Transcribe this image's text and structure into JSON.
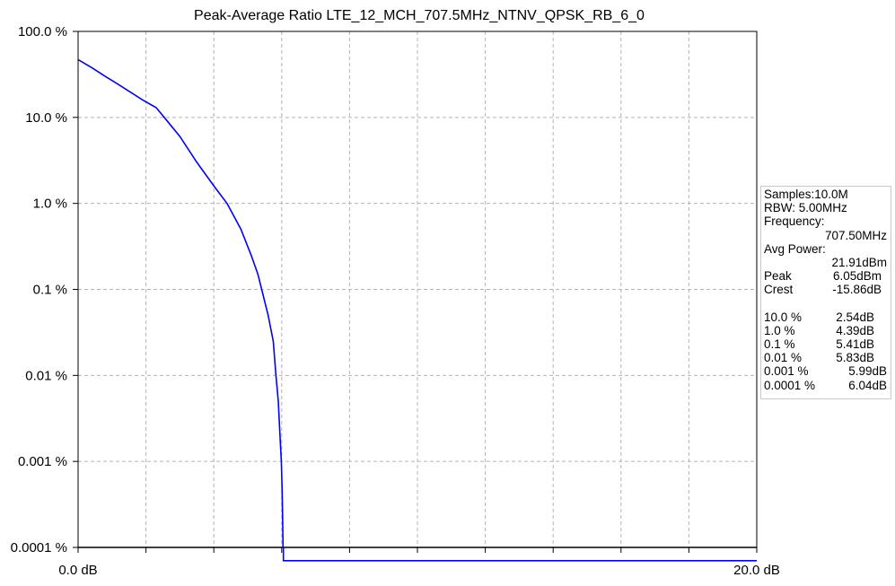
{
  "chart_data": {
    "type": "line",
    "title": "Peak-Average Ratio LTE_12_MCH_707.5MHz_NTNV_QPSK_RB_6_0",
    "xlabel": "",
    "ylabel": "",
    "xlim": [
      0,
      20
    ],
    "ylim_percent": [
      0.0001,
      100
    ],
    "y_scale": "log",
    "grid": true,
    "x_tick_labels": [
      "0.0 dB",
      "20.0 dB"
    ],
    "y_tick_labels": [
      "100.0 %",
      "10.0 %",
      "1.0 %",
      "0.1 %",
      "0.01 %",
      "0.001 %",
      "0.0001 %"
    ],
    "y_tick_values": [
      100,
      10,
      1,
      0.1,
      0.01,
      0.001,
      0.0001
    ],
    "series": [
      {
        "color": "#0000ff",
        "x": [
          0.0,
          0.4,
          0.8,
          1.2,
          1.6,
          1.9,
          2.3,
          2.54,
          3.0,
          3.5,
          4.0,
          4.39,
          4.8,
          5.1,
          5.3,
          5.41,
          5.6,
          5.75,
          5.83,
          5.9,
          5.95,
          5.99,
          6.01,
          6.03,
          6.04,
          6.05,
          6.05,
          20.0
        ],
        "y": [
          47,
          38,
          30,
          24,
          19,
          16,
          13,
          10,
          6,
          3,
          1.6,
          1.0,
          0.5,
          0.25,
          0.15,
          0.1,
          0.05,
          0.025,
          0.01,
          0.005,
          0.002,
          0.001,
          0.0005,
          0.0002,
          0.0001,
          0.0001,
          7e-05,
          7e-05
        ]
      }
    ]
  },
  "info_panel": {
    "samples": "Samples:10.0M",
    "rbw": "RBW: 5.00MHz",
    "frequency_label": "Frequency:",
    "frequency_value": "707.50MHz",
    "avg_power_label": "Avg Power:",
    "avg_power_value": "21.91dBm",
    "peak_label": "Peak",
    "peak_value": "6.05dBm",
    "crest_label": "Crest",
    "crest_value": "-15.86dB",
    "ccdf": [
      {
        "label": "10.0 %",
        "value": "2.54dB"
      },
      {
        "label": "1.0 %",
        "value": "4.39dB"
      },
      {
        "label": "0.1 %",
        "value": "5.41dB"
      },
      {
        "label": "0.01 %",
        "value": "5.83dB"
      },
      {
        "label": "0.001 %",
        "value": "5.99dB"
      },
      {
        "label": "0.0001 %",
        "value": "6.04dB"
      }
    ]
  }
}
